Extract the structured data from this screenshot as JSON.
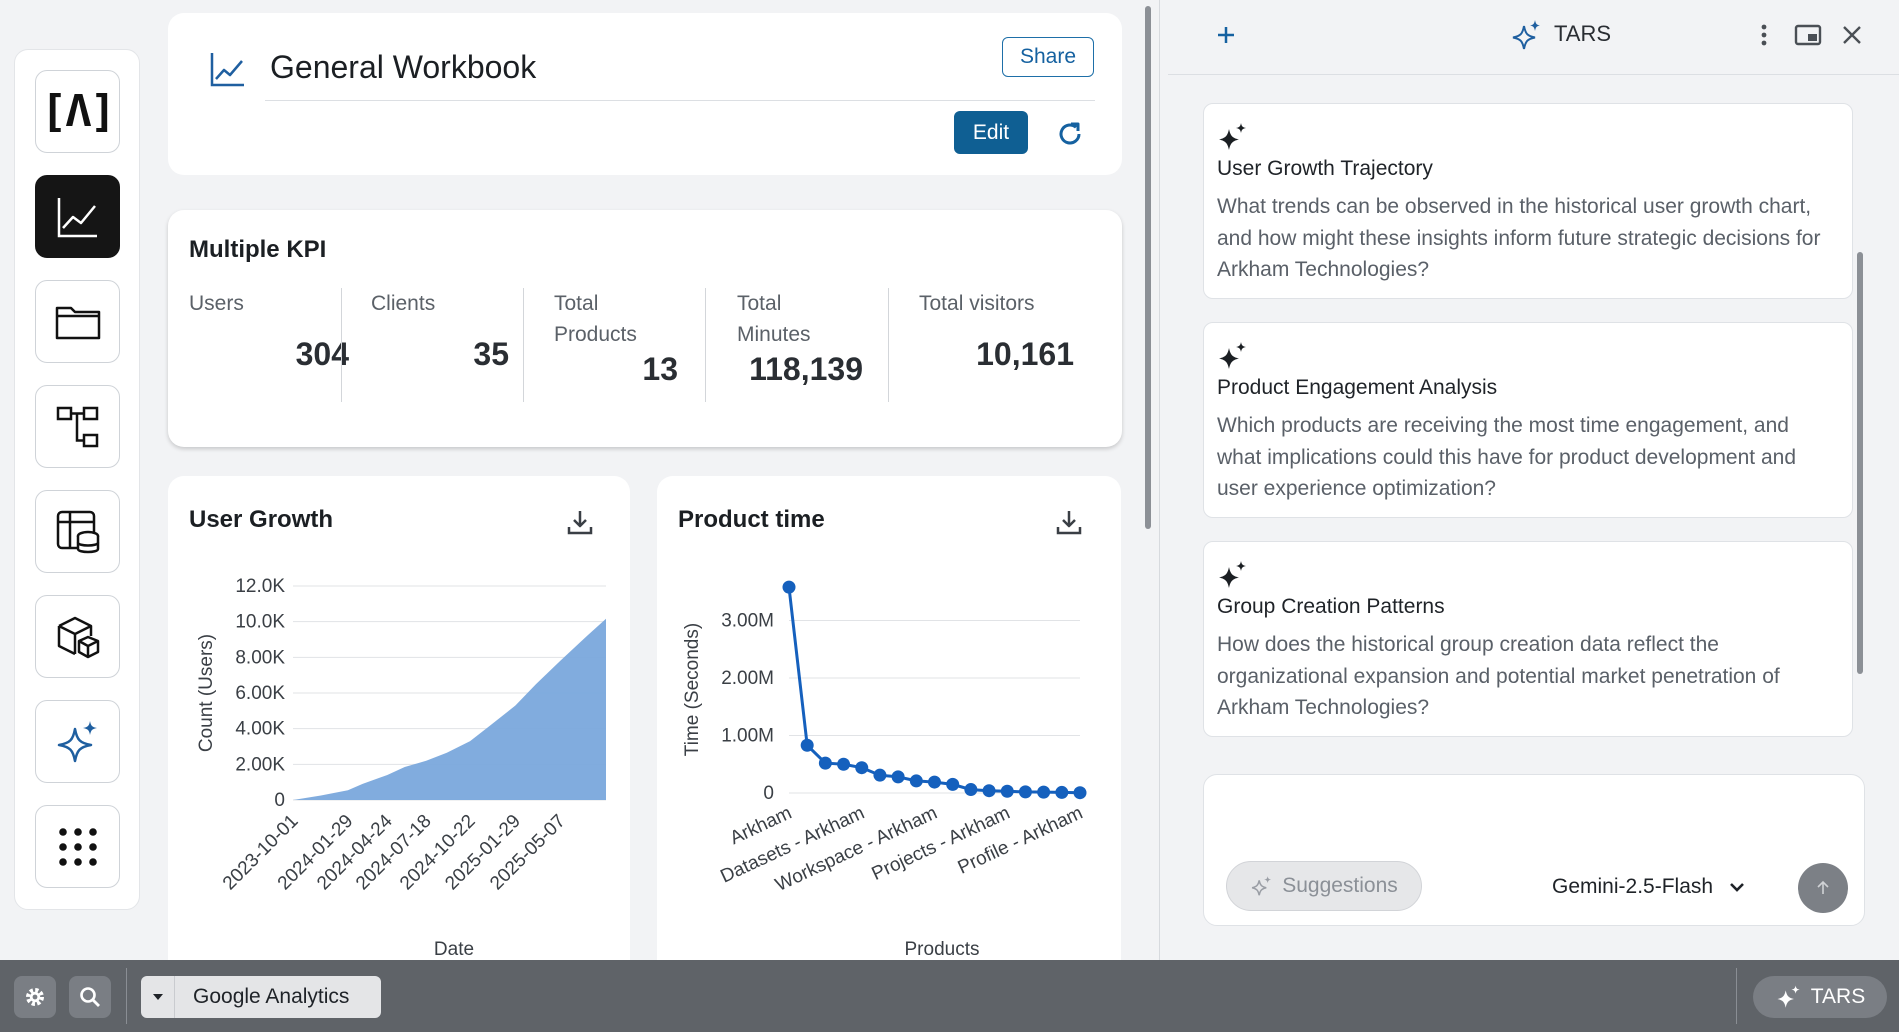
{
  "header": {
    "title": "General Workbook",
    "share_label": "Share",
    "edit_label": "Edit"
  },
  "rail": {
    "logo_text": "[Λ]",
    "items": [
      "logo",
      "workbook-chart-icon",
      "folder-icon",
      "workflow-icon",
      "database-table-icon",
      "packages-icon",
      "ai-sparkles-icon",
      "apps-grid-icon"
    ]
  },
  "kpi": {
    "title": "Multiple KPI",
    "items": [
      {
        "label": "Users",
        "value": "304"
      },
      {
        "label": "Clients",
        "value": "35"
      },
      {
        "label": "Total Products",
        "value": "13"
      },
      {
        "label": "Total Minutes",
        "value": "118,139"
      },
      {
        "label": "Total visitors",
        "value": "10,161"
      }
    ]
  },
  "chart_data": [
    {
      "type": "area",
      "title": "User Growth",
      "xlabel": "Date",
      "ylabel": "Count (Users)",
      "ylim": [
        0,
        12000
      ],
      "yticks": [
        "0",
        "2.00K",
        "4.00K",
        "6.00K",
        "8.00K",
        "10.0K",
        "12.0K"
      ],
      "xticks": [
        "2023-10-01",
        "2024-01-29",
        "2024-04-24",
        "2024-07-18",
        "2024-10-22",
        "2025-01-29",
        "2025-05-07"
      ],
      "x": [
        "2023-10-01",
        "2023-12-01",
        "2024-01-29",
        "2024-03-01",
        "2024-04-24",
        "2024-06-01",
        "2024-07-18",
        "2024-09-01",
        "2024-10-22",
        "2024-12-01",
        "2025-01-29",
        "2025-03-15",
        "2025-05-07",
        "2025-06-30",
        "2025-08-15"
      ],
      "values": [
        0,
        250,
        550,
        900,
        1400,
        1850,
        2200,
        2650,
        3300,
        4100,
        5300,
        6500,
        7800,
        9100,
        10161
      ],
      "grid": true,
      "color": "#7aa8dc"
    },
    {
      "type": "line",
      "title": "Product time",
      "xlabel": "Products",
      "ylabel": "Time (Seconds)",
      "ylim": [
        0,
        3600000
      ],
      "yticks": [
        "0",
        "1.00M",
        "2.00M",
        "3.00M"
      ],
      "xticks": [
        "Arkham",
        "Datasets - Arkham",
        "Workspace - Arkham",
        "Projects - Arkham",
        "Profile - Arkham"
      ],
      "values": [
        3580000,
        830000,
        520000,
        500000,
        440000,
        310000,
        280000,
        210000,
        190000,
        150000,
        60000,
        40000,
        30000,
        20000,
        15000,
        10000,
        5000
      ],
      "grid": true,
      "color": "#1560bd"
    }
  ],
  "tars": {
    "title": "TARS",
    "suggestions": [
      {
        "title": "User Growth Trajectory",
        "body": "What trends can be observed in the historical user growth chart, and how might these insights inform future strategic decisions for Arkham Technologies?"
      },
      {
        "title": "Product Engagement Analysis",
        "body": "Which products are receiving the most time engagement, and what implications could this have for product development and user experience optimization?"
      },
      {
        "title": "Group Creation Patterns",
        "body": "How does the historical group creation data reflect the organizational expansion and potential market penetration of Arkham Technologies?"
      }
    ],
    "suggestions_label": "Suggestions",
    "model": "Gemini-2.5-Flash"
  },
  "taskbar": {
    "app_label": "Google Analytics",
    "tars_label": "TARS"
  }
}
